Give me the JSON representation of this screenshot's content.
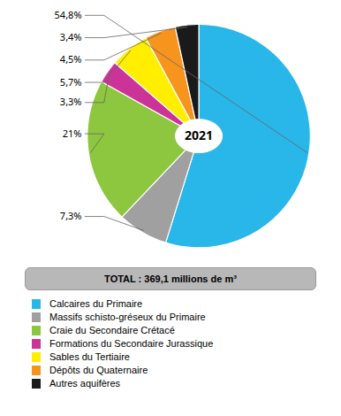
{
  "chart_data": {
    "type": "pie",
    "categories": [
      "Calcaires du Primaire",
      "Massifs schisto-gréseux du Primaire",
      "Craie du Secondaire Crétacé",
      "Formations du Secondaire Jurassique",
      "Sables du Tertiaire",
      "Dépôts du Quaternaire",
      "Autres aquifères"
    ],
    "values": [
      54.8,
      7.3,
      21.0,
      3.3,
      5.7,
      4.5,
      3.4
    ],
    "value_labels": [
      "54,8%",
      "7,3%",
      "21%",
      "3,3%",
      "5,7%",
      "4,5%",
      "3,4%"
    ],
    "colors": [
      "#29b6e8",
      "#a0a0a0",
      "#8dc63f",
      "#cc3399",
      "#ffee00",
      "#f7941d",
      "#1a1a1a"
    ],
    "data_labels": true,
    "annotations": [
      "2021",
      "TOTAL : 369,1 millions de m³"
    ],
    "legend": "bottom"
  }
}
